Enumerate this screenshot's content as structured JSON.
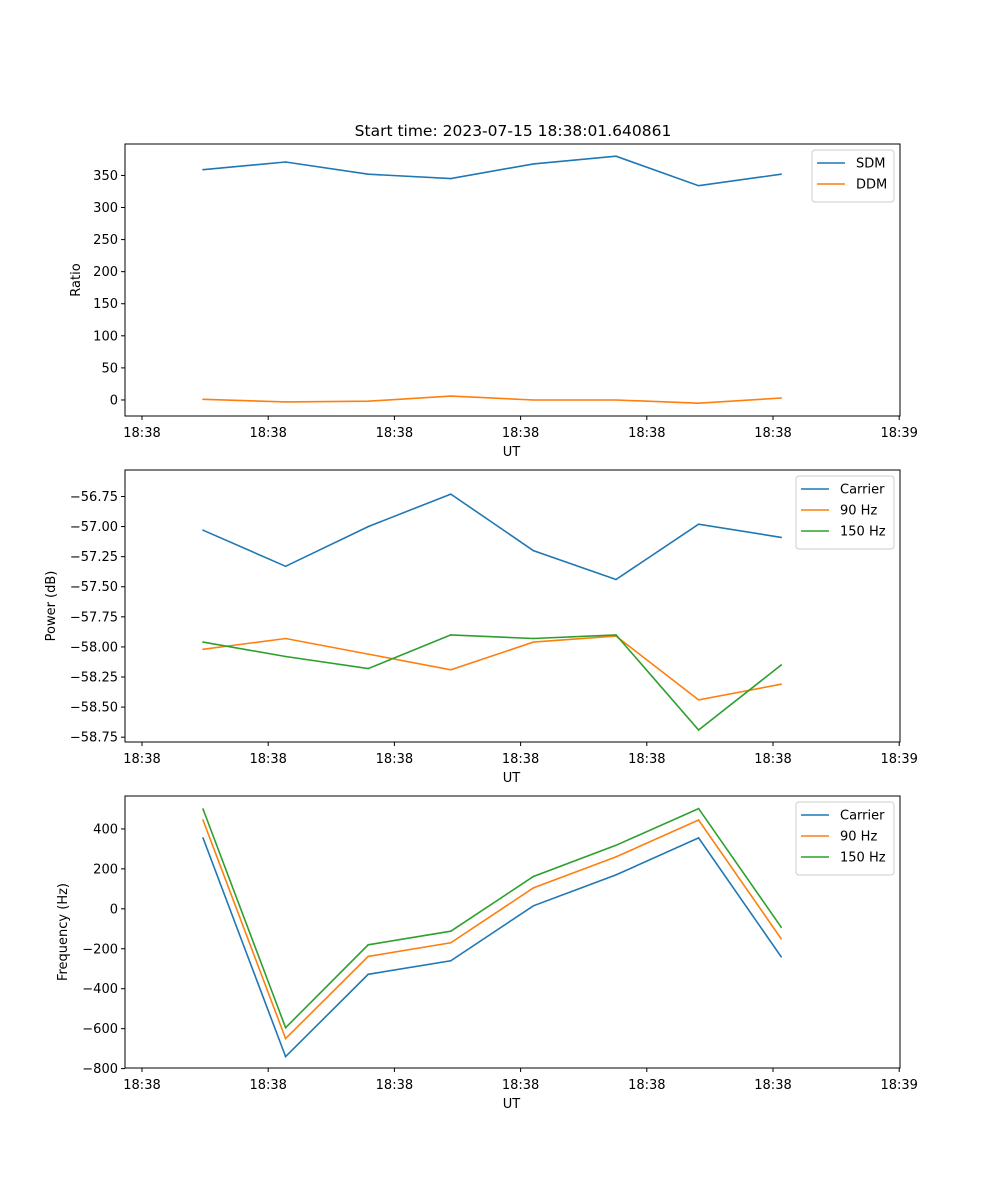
{
  "title": "Start time: 2023-07-15 18:38:01.640861",
  "chart_data": [
    {
      "type": "line",
      "xlabel": "UT",
      "ylabel": "Ratio",
      "x_tick_labels": [
        "18:38",
        "18:38",
        "18:38",
        "18:38",
        "18:38",
        "18:38",
        "18:39"
      ],
      "y_ticks": [
        0,
        50,
        100,
        150,
        200,
        250,
        300,
        350
      ],
      "y_tick_labels": [
        "0",
        "50",
        "100",
        "150",
        "200",
        "250",
        "300",
        "350"
      ],
      "ylim": [
        -25,
        399
      ],
      "x": [
        0,
        1,
        2,
        3,
        4,
        5,
        6,
        7
      ],
      "legend_position": "upper right",
      "series": [
        {
          "name": "SDM",
          "color": "#1f77b4",
          "values": [
            359,
            371,
            352,
            345,
            368,
            380,
            334,
            352
          ]
        },
        {
          "name": "DDM",
          "color": "#ff7f0e",
          "values": [
            1,
            -3,
            -2,
            6,
            0,
            0,
            -5,
            3
          ]
        }
      ]
    },
    {
      "type": "line",
      "xlabel": "UT",
      "ylabel": "Power (dB)",
      "x_tick_labels": [
        "18:38",
        "18:38",
        "18:38",
        "18:38",
        "18:38",
        "18:38",
        "18:39"
      ],
      "y_ticks": [
        -58.75,
        -58.5,
        -58.25,
        -58.0,
        -57.75,
        -57.5,
        -57.25,
        -57.0,
        -56.75
      ],
      "y_tick_labels": [
        "−58.75",
        "−58.50",
        "−58.25",
        "−58.00",
        "−57.75",
        "−57.50",
        "−57.25",
        "−57.00",
        "−56.75"
      ],
      "ylim": [
        -58.79,
        -56.53
      ],
      "x": [
        0,
        1,
        2,
        3,
        4,
        5,
        6,
        7
      ],
      "legend_position": "upper right",
      "series": [
        {
          "name": "Carrier",
          "color": "#1f77b4",
          "values": [
            -57.03,
            -57.33,
            -57.0,
            -56.73,
            -57.2,
            -57.44,
            -56.98,
            -57.09
          ]
        },
        {
          "name": "90 Hz",
          "color": "#ff7f0e",
          "values": [
            -58.02,
            -57.93,
            -58.06,
            -58.19,
            -57.96,
            -57.91,
            -58.44,
            -58.31
          ]
        },
        {
          "name": "150 Hz",
          "color": "#2ca02c",
          "values": [
            -57.96,
            -58.08,
            -58.18,
            -57.9,
            -57.93,
            -57.9,
            -58.69,
            -58.15
          ]
        }
      ]
    },
    {
      "type": "line",
      "xlabel": "UT",
      "ylabel": "Frequency (Hz)",
      "x_tick_labels": [
        "18:38",
        "18:38",
        "18:38",
        "18:38",
        "18:38",
        "18:38",
        "18:39"
      ],
      "y_ticks": [
        -800,
        -600,
        -400,
        -200,
        0,
        200,
        400
      ],
      "y_tick_labels": [
        "−800",
        "−600",
        "−400",
        "−200",
        "0",
        "200",
        "400"
      ],
      "ylim": [
        -797,
        565
      ],
      "x": [
        0,
        1,
        2,
        3,
        4,
        5,
        6,
        7
      ],
      "legend_position": "upper right",
      "series": [
        {
          "name": "Carrier",
          "color": "#1f77b4",
          "values": [
            355,
            -740,
            -328,
            -260,
            15,
            170,
            355,
            -240
          ]
        },
        {
          "name": "90 Hz",
          "color": "#ff7f0e",
          "values": [
            445,
            -650,
            -238,
            -170,
            105,
            260,
            445,
            -150
          ]
        },
        {
          "name": "150 Hz",
          "color": "#2ca02c",
          "values": [
            500,
            -595,
            -180,
            -112,
            162,
            318,
            502,
            -92
          ]
        }
      ]
    }
  ]
}
